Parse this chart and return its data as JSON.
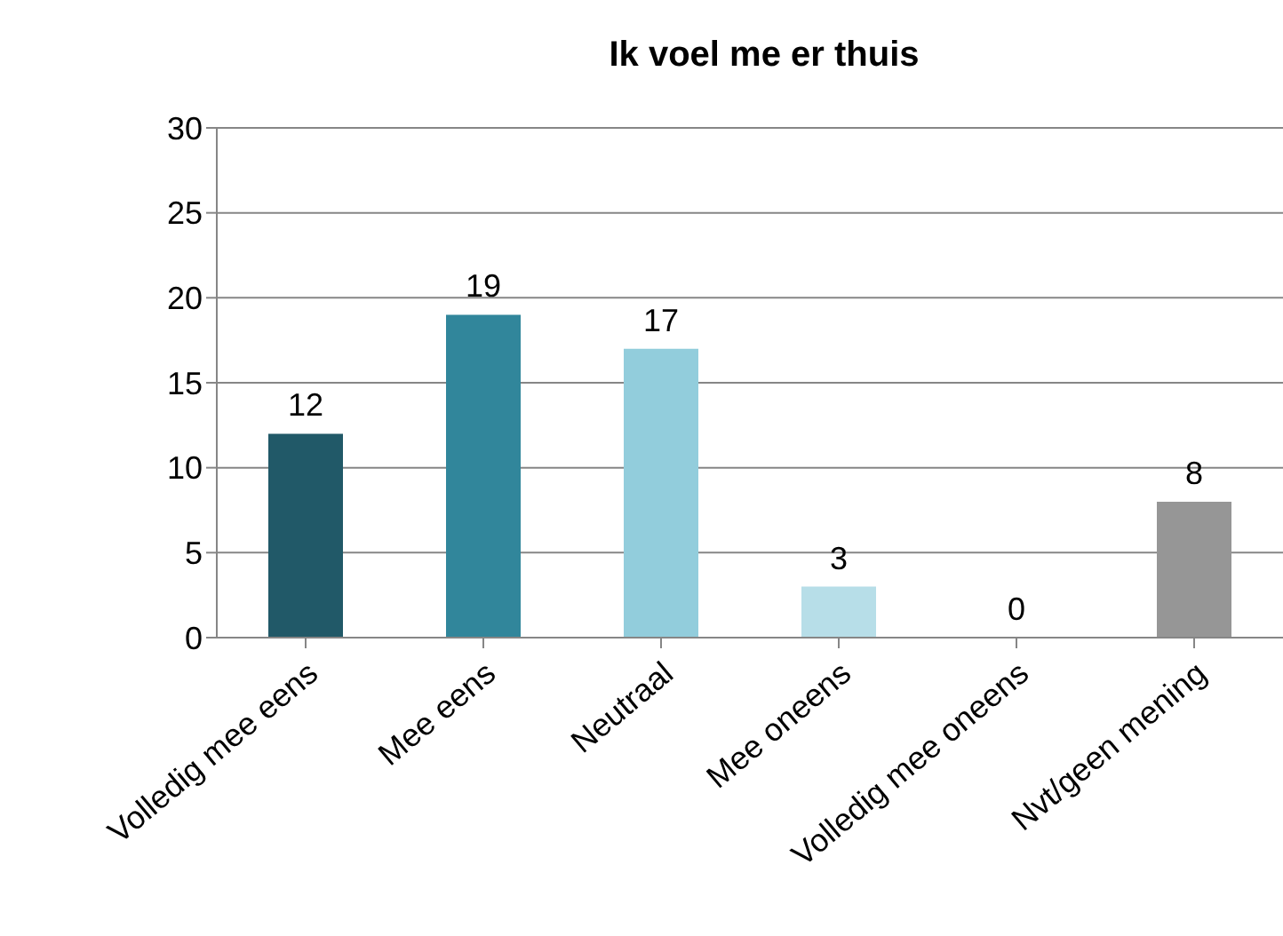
{
  "chart_data": {
    "type": "bar",
    "title": "Ik voel me er thuis",
    "categories": [
      "Volledig mee eens",
      "Mee eens",
      "Neutraal",
      "Mee oneens",
      "Volledig mee oneens",
      "Nvt/geen mening"
    ],
    "values": [
      12,
      19,
      17,
      3,
      0,
      8
    ],
    "colors": [
      "#215968",
      "#31869b",
      "#92cddc",
      "#b7dee8",
      "#dbeef3",
      "#969696"
    ],
    "ylim": [
      0,
      30
    ],
    "yticks": [
      0,
      5,
      10,
      15,
      20,
      25,
      30
    ],
    "grid": "y",
    "data_labels": true,
    "legend": false
  }
}
